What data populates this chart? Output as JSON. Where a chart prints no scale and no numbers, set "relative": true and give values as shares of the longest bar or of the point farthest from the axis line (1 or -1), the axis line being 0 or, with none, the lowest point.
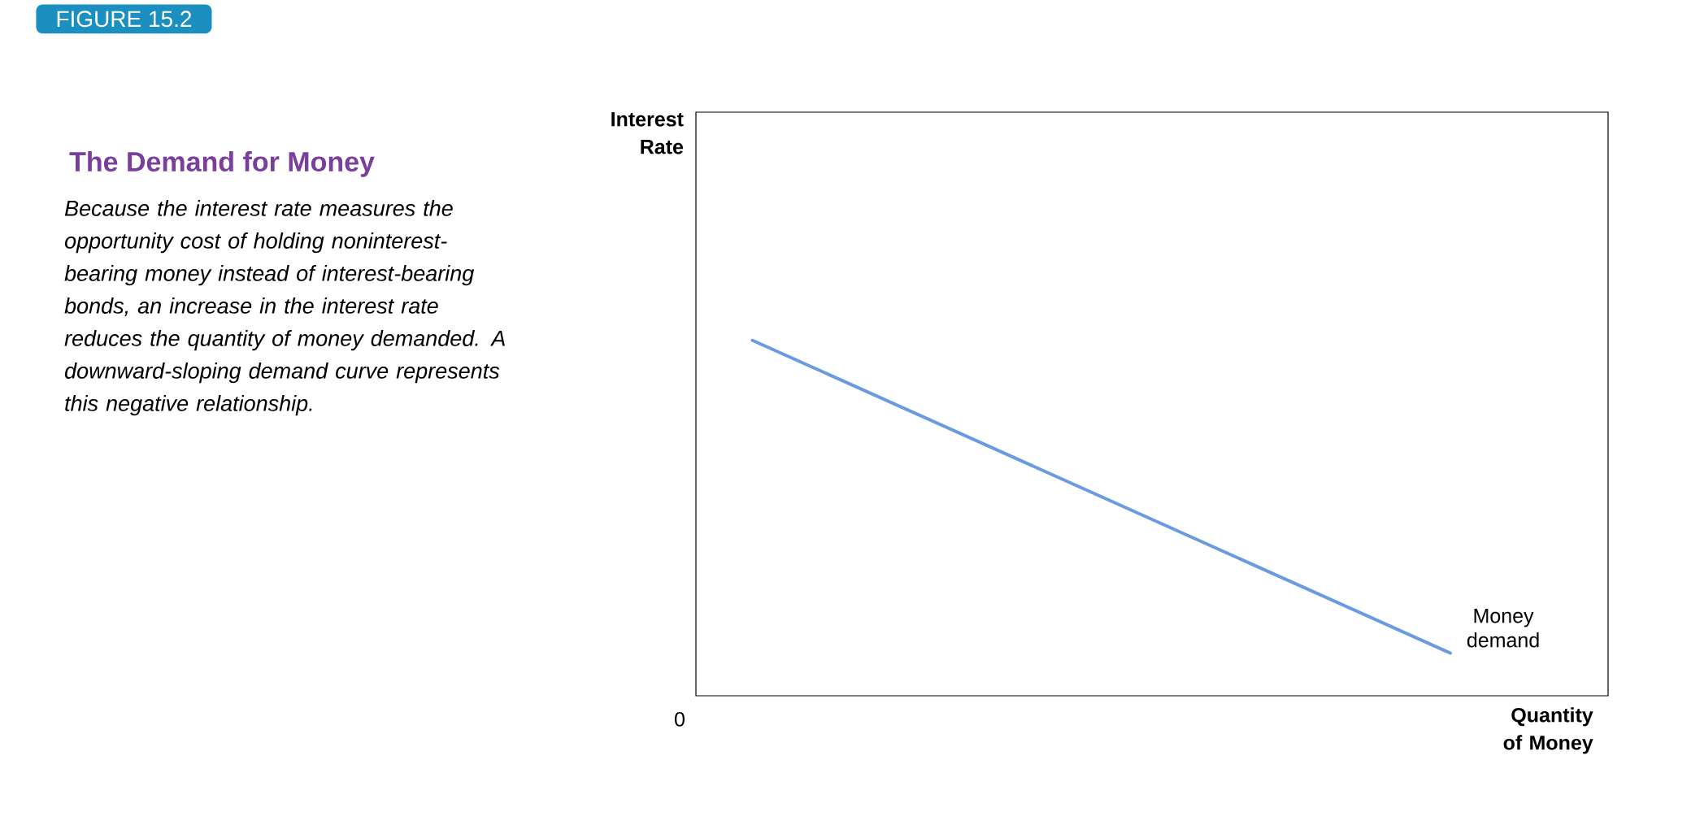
{
  "chart_data": {
    "type": "line",
    "title": "The Demand for Money",
    "subtitle": "Because the interest rate measures the opportunity cost of holding noninterest-bearing money instead of interest-bearing bonds, an increase in the interest rate reduces the quantity of money demanded. A downward-sloping demand curve represents this negative relationship.",
    "xlabel": "Quantity of Money",
    "annotations": [
      "FIGURE 15.2",
      "0",
      "Interest Rate"
    ],
    "categories": [
      null,
      null
    ],
    "relative": true,
    "series": [
      {
        "name": "Money demand",
        "color": "#6a9be0",
        "values": [
          1,
          0.12
        ]
      }
    ]
  }
}
